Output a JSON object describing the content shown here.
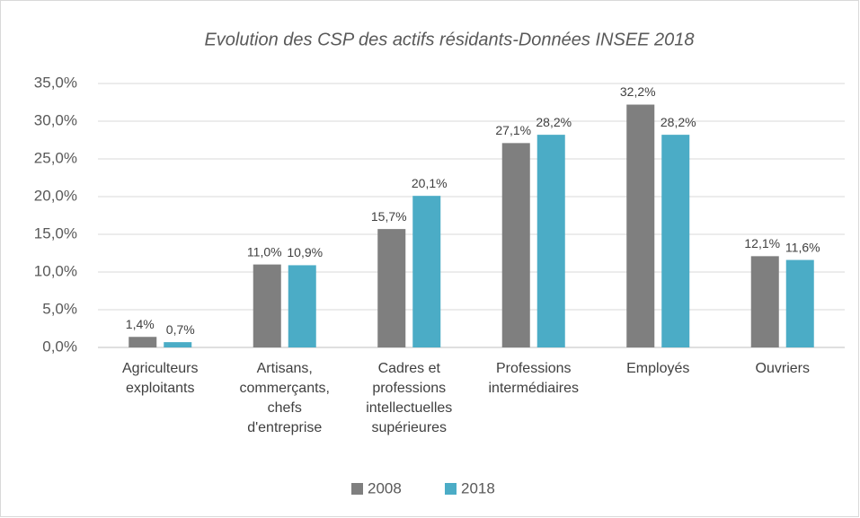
{
  "chart_data": {
    "type": "bar",
    "title": "Evolution des CSP des actifs résidants-Données INSEE 2018",
    "categories": [
      "Agriculteurs exploitants",
      "Artisans, commerçants, chefs d'entreprise",
      "Cadres et professions intellectuelles supérieures",
      "Professions intermédiaires",
      "Employés",
      "Ouvriers"
    ],
    "series": [
      {
        "name": "2008",
        "color": "#7f7f7f",
        "values": [
          1.4,
          11.0,
          15.7,
          27.1,
          32.2,
          12.1
        ],
        "value_labels": [
          "1,4%",
          "11,0%",
          "15,7%",
          "27,1%",
          "32,2%",
          "12,1%"
        ]
      },
      {
        "name": "2018",
        "color": "#4bacc6",
        "values": [
          0.7,
          10.9,
          20.1,
          28.2,
          28.2,
          11.6
        ],
        "value_labels": [
          "0,7%",
          "10,9%",
          "20,1%",
          "28,2%",
          "28,2%",
          "11,6%"
        ]
      }
    ],
    "ylim": [
      0,
      35
    ],
    "yticks": [
      {
        "value": 0,
        "label": "0,0%"
      },
      {
        "value": 5,
        "label": "5,0%"
      },
      {
        "value": 10,
        "label": "10,0%"
      },
      {
        "value": 15,
        "label": "15,0%"
      },
      {
        "value": 20,
        "label": "20,0%"
      },
      {
        "value": 25,
        "label": "25,0%"
      },
      {
        "value": 30,
        "label": "30,0%"
      },
      {
        "value": 35,
        "label": "35,0%"
      }
    ],
    "grid": true,
    "legend": "bottom"
  }
}
